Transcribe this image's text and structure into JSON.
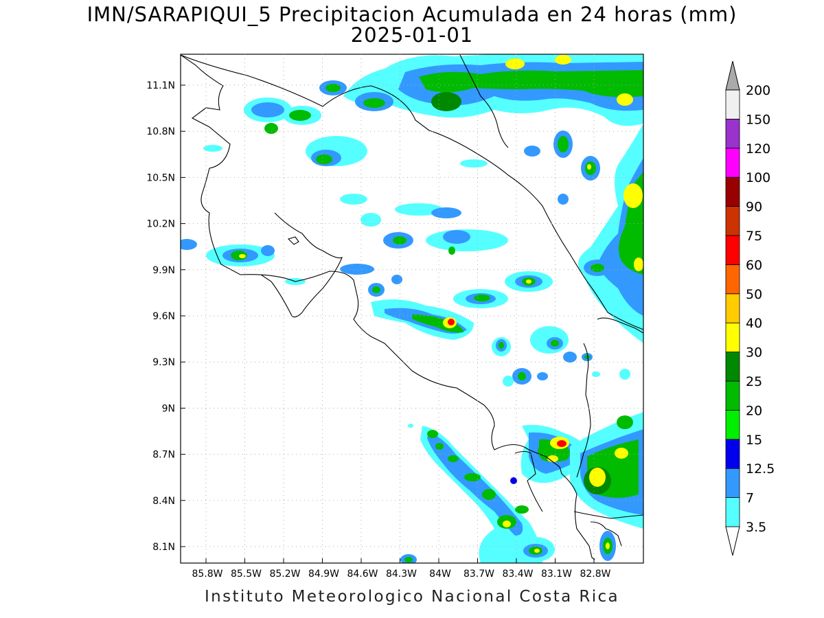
{
  "map": {
    "title_line1": "IMN/SARAPIQUI_5 Precipitacion Acumulada en 24 horas (mm)",
    "title_line2": "2025-01-01",
    "footer": "Instituto Meteorologico Nacional Costa Rica",
    "lat_ticks": [
      "11.1N",
      "10.8N",
      "10.5N",
      "10.2N",
      "9.9N",
      "9.6N",
      "9.3N",
      "9N",
      "8.7N",
      "8.4N",
      "8.1N"
    ],
    "lon_ticks": [
      "85.8W",
      "85.5W",
      "85.2W",
      "84.9W",
      "84.6W",
      "84.3W",
      "84W",
      "83.7W",
      "83.4W",
      "83.1W",
      "82.8W"
    ],
    "gridlines": "dotted"
  },
  "colorbar": {
    "levels": [
      "3.5",
      "7",
      "12.5",
      "15",
      "20",
      "25",
      "30",
      "40",
      "50",
      "60",
      "75",
      "90",
      "100",
      "120",
      "150",
      "200"
    ],
    "colors": [
      "#55ffff",
      "#3399ff",
      "#0000ee",
      "#00ee00",
      "#00bb00",
      "#008800",
      "#ffff00",
      "#ffcc00",
      "#ff6600",
      "#ff0000",
      "#cc3300",
      "#990000",
      "#ff00ff",
      "#9933cc",
      "#f0f0f0",
      "#aaaaaa"
    ]
  }
}
